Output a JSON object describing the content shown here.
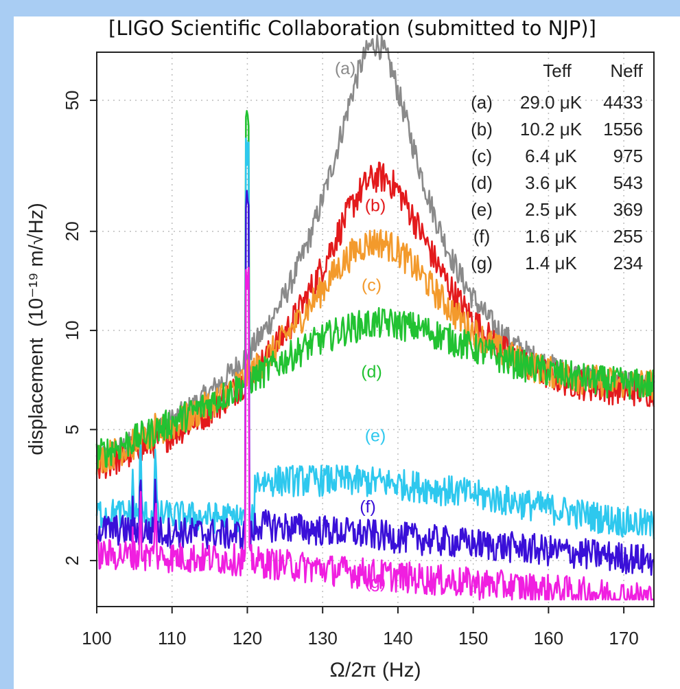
{
  "citation": "[LIGO Scientific Collaboration (submitted to NJP)]",
  "colors": {
    "a": "#8a8a8a",
    "b": "#e31a1c",
    "c": "#f39a2c",
    "d": "#22c232",
    "e": "#2ec8ee",
    "f": "#3a10d8",
    "g": "#f01fe0",
    "background": "#a9cdf3"
  },
  "chart_data": {
    "type": "line",
    "xlabel": "Ω/2π (Hz)",
    "ylabel_text": "displacement",
    "ylabel_units": "(10⁻¹⁹ m/√Hz)",
    "xlim": [
      100,
      174
    ],
    "ylim": [
      1.45,
      70
    ],
    "log_y": true,
    "grid": "dotted",
    "x_ticks": [
      100,
      110,
      120,
      130,
      140,
      150,
      160,
      170
    ],
    "y_ticks": [
      2,
      5,
      10,
      20,
      50
    ],
    "legend_header": {
      "t": "Teff",
      "n": "Neff"
    },
    "series": [
      {
        "name": "(a)",
        "teff": "29.0 μK",
        "neff": "4433",
        "color": "#8a8a8a",
        "peak": 70,
        "center": 137,
        "width": 4.6,
        "floor": 3.0,
        "lines": [
          4.9,
          5.2,
          5.5,
          0
        ]
      },
      {
        "name": "(b)",
        "teff": "10.2 μK",
        "neff": "1556",
        "color": "#e31a1c",
        "peak": 25,
        "center": 137.5,
        "width": 7.0,
        "floor": 3.0,
        "lines": [
          4.9,
          5.2,
          5.5,
          0
        ]
      },
      {
        "name": "(c)",
        "teff": "6.4 μK",
        "neff": "975",
        "color": "#f39a2c",
        "peak": 14,
        "center": 137,
        "width": 9.5,
        "floor": 3.2,
        "lines": [
          4.9,
          5.2,
          5.5,
          0
        ]
      },
      {
        "name": "(d)",
        "teff": "3.6 μK",
        "neff": "543",
        "color": "#22c232",
        "peak": 6.2,
        "center": 137,
        "width": 18,
        "floor": 3.0,
        "lines": [
          4.9,
          5.2,
          5.5,
          42
        ]
      },
      {
        "name": "(e)",
        "teff": "2.5 μK",
        "neff": "369",
        "color": "#2ec8ee",
        "peak": 4.0,
        "center": 137,
        "width": 28,
        "floor": 2.8,
        "lines": [
          4.0,
          4.6,
          4.6,
          35
        ]
      },
      {
        "name": "(f)",
        "teff": "1.6 μK",
        "neff": "255",
        "color": "#3a10d8",
        "peak": 2.4,
        "center": 135,
        "width": 45,
        "floor": 2.5,
        "lines": [
          3.0,
          3.8,
          3.8,
          25
        ]
      },
      {
        "name": "(g)",
        "teff": "1.4 μK",
        "neff": "234",
        "color": "#f01fe0",
        "peak": 1.7,
        "center": 137,
        "width": 60,
        "floor": 2.1,
        "lines": [
          2.6,
          3.3,
          3.3,
          14
        ]
      }
    ],
    "curve_labels": [
      {
        "text": "(a)",
        "x": 133,
        "y": 60
      },
      {
        "text": "(b)",
        "x": 137,
        "y": 23
      },
      {
        "text": "(c)",
        "x": 136.5,
        "y": 13.2
      },
      {
        "text": "(d)",
        "x": 136.5,
        "y": 7.2
      },
      {
        "text": "(e)",
        "x": 137,
        "y": 4.6
      },
      {
        "text": "(f)",
        "x": 136,
        "y": 2.8
      },
      {
        "text": "(g)",
        "x": 137,
        "y": 1.65
      }
    ]
  }
}
